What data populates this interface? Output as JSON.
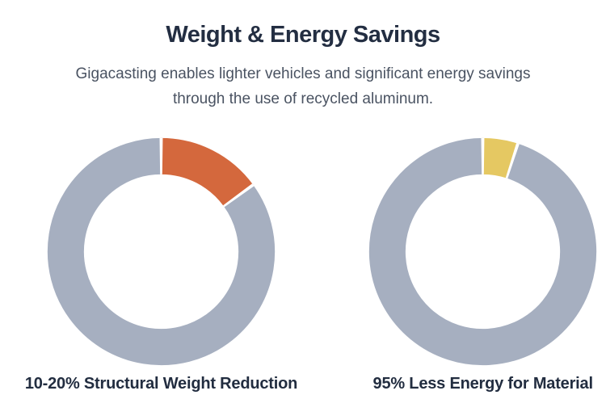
{
  "header": {
    "title": "Weight & Energy Savings",
    "subtitle_lines": [
      "Gigacasting enables lighter vehicles and significant energy savings",
      "through the use of recycled aluminum."
    ]
  },
  "theme": {
    "background": "#FFFFFF",
    "title_color": "#232E42",
    "subtitle_color": "#4A5362",
    "caption_color": "#222D40",
    "ring_gray": "#A6AFC0",
    "accent_orange": "#D4683D",
    "accent_yellow": "#E5C862",
    "slice_separator": "#FFFFFF"
  },
  "chart_data": [
    {
      "type": "pie",
      "subtype": "donut",
      "caption": "10-20% Structural Weight Reduction",
      "values": [
        15,
        85
      ],
      "colors": [
        "#D4683D",
        "#A6AFC0"
      ],
      "start_angle_deg": 0,
      "direction": "clockwise",
      "cutout_pct": 68,
      "legend": "none",
      "data_labels": "none"
    },
    {
      "type": "pie",
      "subtype": "donut",
      "caption": "95% Less Energy for Material",
      "values": [
        5,
        95
      ],
      "colors": [
        "#E5C862",
        "#A6AFC0"
      ],
      "start_angle_deg": 0,
      "direction": "clockwise",
      "cutout_pct": 68,
      "legend": "none",
      "data_labels": "none"
    }
  ]
}
